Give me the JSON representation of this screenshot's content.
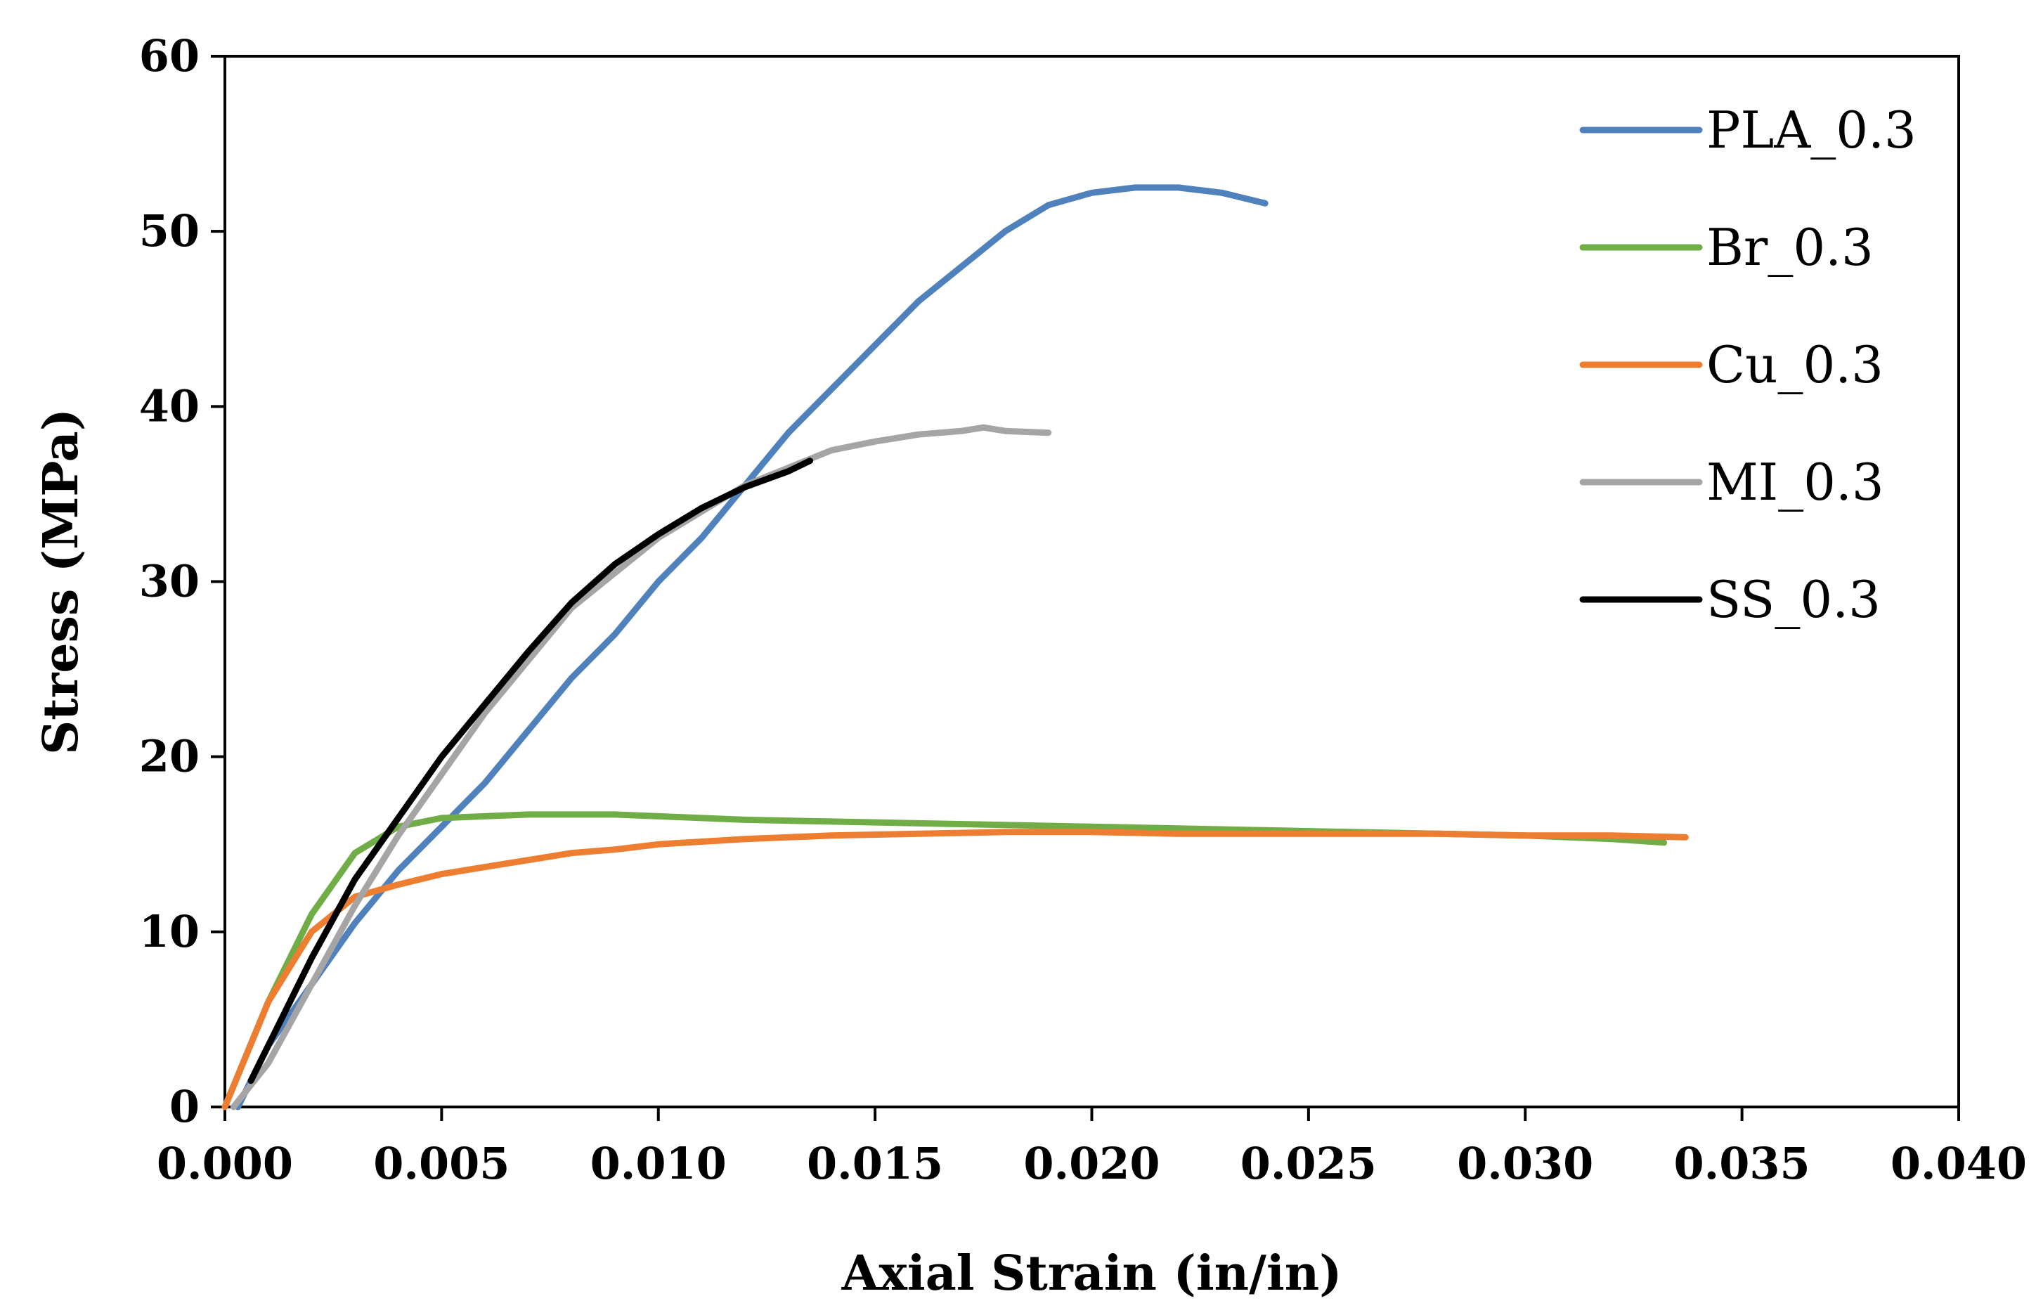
{
  "chart_data": {
    "type": "line",
    "title": "",
    "xlabel": "Axial Strain (in/in)",
    "ylabel": "Stress (MPa)",
    "xlim": [
      0.0,
      0.04
    ],
    "ylim": [
      0,
      60
    ],
    "x_ticks": [
      "0.000",
      "0.005",
      "0.010",
      "0.015",
      "0.020",
      "0.025",
      "0.030",
      "0.035",
      "0.040"
    ],
    "y_ticks": [
      "0",
      "10",
      "20",
      "30",
      "40",
      "50",
      "60"
    ],
    "grid": false,
    "legend_position": "top-right",
    "series": [
      {
        "name": "PLA_0.3",
        "color": "#4F81BD",
        "points": [
          [
            0.0003,
            0
          ],
          [
            0.001,
            3.5
          ],
          [
            0.002,
            7
          ],
          [
            0.003,
            10.5
          ],
          [
            0.004,
            13.5
          ],
          [
            0.005,
            16
          ],
          [
            0.006,
            18.5
          ],
          [
            0.007,
            21.5
          ],
          [
            0.008,
            24.5
          ],
          [
            0.009,
            27
          ],
          [
            0.01,
            30
          ],
          [
            0.011,
            32.5
          ],
          [
            0.012,
            35.5
          ],
          [
            0.013,
            38.5
          ],
          [
            0.014,
            41
          ],
          [
            0.015,
            43.5
          ],
          [
            0.016,
            46
          ],
          [
            0.017,
            48
          ],
          [
            0.018,
            50
          ],
          [
            0.019,
            51.5
          ],
          [
            0.02,
            52.2
          ],
          [
            0.021,
            52.5
          ],
          [
            0.022,
            52.5
          ],
          [
            0.023,
            52.2
          ],
          [
            0.024,
            51.6
          ]
        ]
      },
      {
        "name": "Br_0.3",
        "color": "#70AD47",
        "points": [
          [
            0.0,
            0
          ],
          [
            0.001,
            6
          ],
          [
            0.002,
            11
          ],
          [
            0.003,
            14.5
          ],
          [
            0.004,
            16
          ],
          [
            0.005,
            16.5
          ],
          [
            0.006,
            16.6
          ],
          [
            0.007,
            16.7
          ],
          [
            0.008,
            16.7
          ],
          [
            0.009,
            16.7
          ],
          [
            0.01,
            16.6
          ],
          [
            0.012,
            16.4
          ],
          [
            0.014,
            16.3
          ],
          [
            0.016,
            16.2
          ],
          [
            0.018,
            16.1
          ],
          [
            0.02,
            16.0
          ],
          [
            0.022,
            15.9
          ],
          [
            0.024,
            15.8
          ],
          [
            0.026,
            15.7
          ],
          [
            0.028,
            15.6
          ],
          [
            0.03,
            15.5
          ],
          [
            0.032,
            15.3
          ],
          [
            0.0332,
            15.1
          ]
        ]
      },
      {
        "name": "Cu_0.3",
        "color": "#ED7D31",
        "points": [
          [
            0.0,
            0
          ],
          [
            0.001,
            6
          ],
          [
            0.002,
            10
          ],
          [
            0.003,
            12
          ],
          [
            0.004,
            12.7
          ],
          [
            0.005,
            13.3
          ],
          [
            0.006,
            13.7
          ],
          [
            0.007,
            14.1
          ],
          [
            0.008,
            14.5
          ],
          [
            0.009,
            14.7
          ],
          [
            0.01,
            15.0
          ],
          [
            0.012,
            15.3
          ],
          [
            0.014,
            15.5
          ],
          [
            0.016,
            15.6
          ],
          [
            0.018,
            15.7
          ],
          [
            0.02,
            15.7
          ],
          [
            0.022,
            15.6
          ],
          [
            0.024,
            15.6
          ],
          [
            0.026,
            15.6
          ],
          [
            0.028,
            15.6
          ],
          [
            0.03,
            15.5
          ],
          [
            0.032,
            15.5
          ],
          [
            0.0337,
            15.4
          ]
        ]
      },
      {
        "name": "MI_0.3",
        "color": "#A5A5A5",
        "points": [
          [
            0.0002,
            0
          ],
          [
            0.001,
            2.5
          ],
          [
            0.002,
            7
          ],
          [
            0.003,
            11.5
          ],
          [
            0.004,
            15.5
          ],
          [
            0.005,
            19
          ],
          [
            0.006,
            22.5
          ],
          [
            0.007,
            25.5
          ],
          [
            0.008,
            28.5
          ],
          [
            0.009,
            30.5
          ],
          [
            0.01,
            32.5
          ],
          [
            0.011,
            34
          ],
          [
            0.012,
            35.5
          ],
          [
            0.013,
            36.5
          ],
          [
            0.014,
            37.5
          ],
          [
            0.015,
            38
          ],
          [
            0.016,
            38.4
          ],
          [
            0.017,
            38.6
          ],
          [
            0.0175,
            38.8
          ],
          [
            0.018,
            38.6
          ],
          [
            0.019,
            38.5
          ]
        ]
      },
      {
        "name": "SS_0.3",
        "color": "#000000",
        "points": [
          [
            0.0006,
            1.5
          ],
          [
            0.001,
            3.5
          ],
          [
            0.002,
            8.5
          ],
          [
            0.003,
            13
          ],
          [
            0.004,
            16.5
          ],
          [
            0.005,
            20
          ],
          [
            0.006,
            23
          ],
          [
            0.007,
            26
          ],
          [
            0.008,
            28.8
          ],
          [
            0.009,
            31
          ],
          [
            0.01,
            32.7
          ],
          [
            0.011,
            34.2
          ],
          [
            0.012,
            35.4
          ],
          [
            0.013,
            36.3
          ],
          [
            0.0135,
            36.9
          ]
        ]
      }
    ]
  }
}
